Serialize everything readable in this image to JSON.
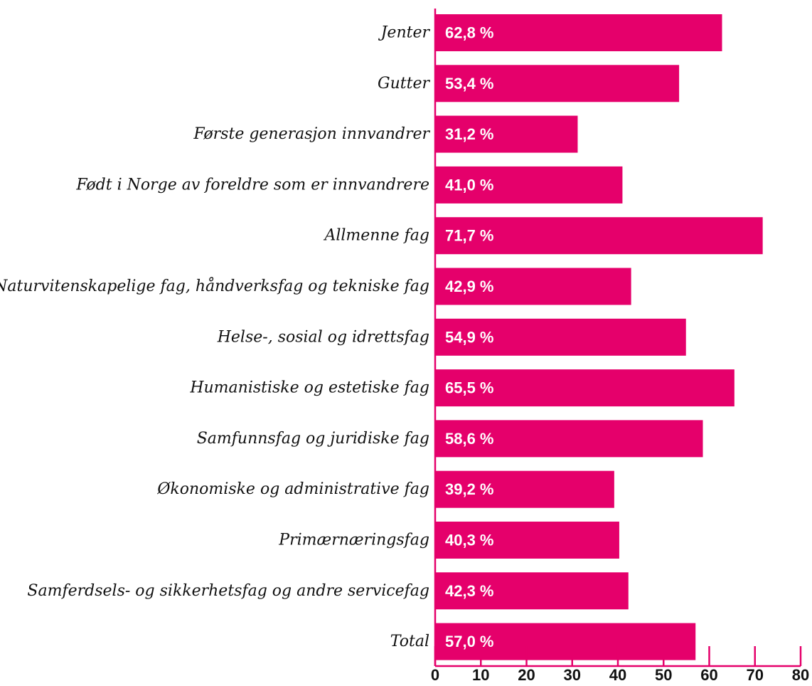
{
  "chart_data": {
    "type": "bar",
    "orientation": "horizontal",
    "title": "",
    "xlabel": "",
    "ylabel": "",
    "categories": [
      "Jenter",
      "Gutter",
      "Første generasjon innvandrer",
      "Født i Norge av foreldre som er innvandrere",
      "Allmenne fag",
      "Naturvitenskapelige fag, håndverksfag og tekniske fag",
      "Helse-, sosial og idrettsfag",
      "Humanistiske og estetiske fag",
      "Samfunnsfag og juridiske fag",
      "Økonomiske og administrative fag",
      "Primærnæringsfag",
      "Samferdsels- og sikkerhetsfag og andre servicefag",
      "Total"
    ],
    "values": [
      62.8,
      53.4,
      31.2,
      41.0,
      71.7,
      42.9,
      54.9,
      65.5,
      58.6,
      39.2,
      40.3,
      42.3,
      57.0
    ],
    "value_labels": [
      "62,8 %",
      "53,4 %",
      "31,2 %",
      "41,0 %",
      "71,7 %",
      "42,9 %",
      "54,9 %",
      "65,5 %",
      "58,6 %",
      "39,2 %",
      "40,3 %",
      "42,3 %",
      "57,0 %"
    ],
    "xlim": [
      0,
      80
    ],
    "x_ticks": [
      0,
      10,
      20,
      30,
      40,
      50,
      60,
      70,
      80
    ],
    "x_tick_labels": [
      "0",
      "10",
      "20",
      "30",
      "40",
      "50",
      "60",
      "70",
      "80"
    ],
    "grid": false,
    "legend": "none",
    "colors": {
      "bar": "#E5006B",
      "axis": "#E5006B",
      "value_label": "#ffffff",
      "text": "#111111"
    }
  }
}
